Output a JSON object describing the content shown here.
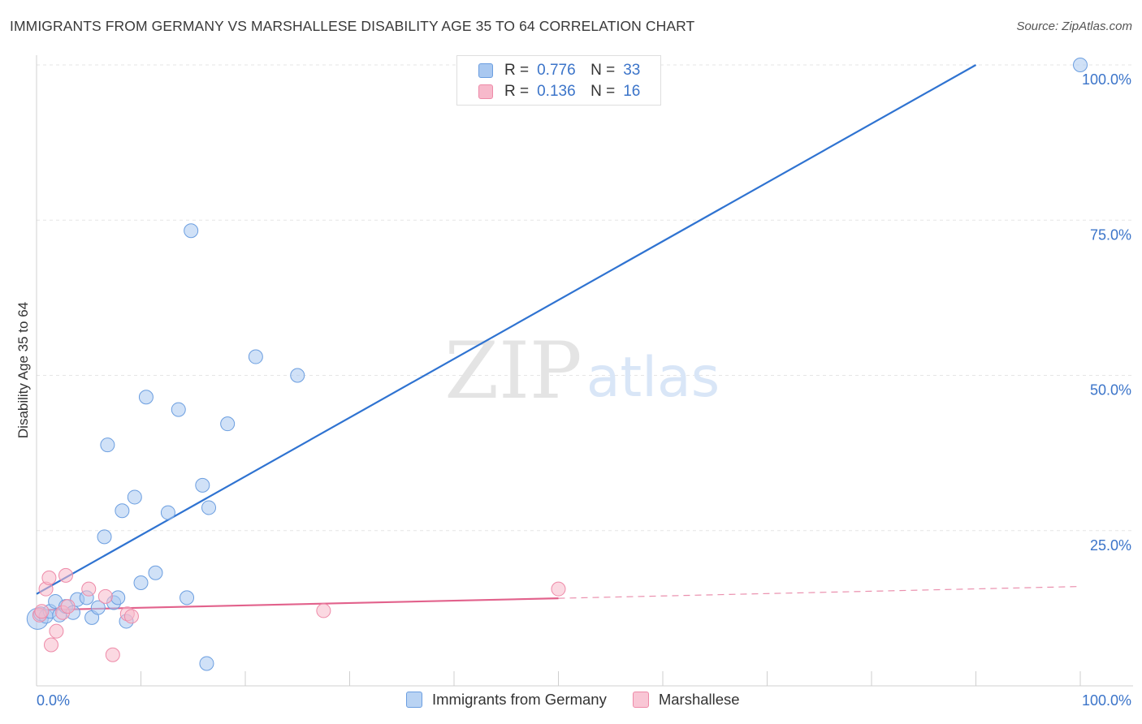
{
  "header": {
    "title": "IMMIGRANTS FROM GERMANY VS MARSHALLESE DISABILITY AGE 35 TO 64 CORRELATION CHART",
    "source": "Source: ZipAtlas.com"
  },
  "legend": {
    "r_label": "R =",
    "n_label": "N =",
    "rows": [
      {
        "r": "0.776",
        "n": "33",
        "color": "#a9c8f0",
        "border": "#6b9ee0"
      },
      {
        "r": "0.136",
        "n": "16",
        "color": "#f7b9cb",
        "border": "#ee8aa8"
      }
    ]
  },
  "bottom_legend": [
    {
      "label": "Immigrants from Germany",
      "color": "#b9d3f3",
      "border": "#6b9ee0"
    },
    {
      "label": "Marshallese",
      "color": "#f9c6d5",
      "border": "#ee8aa8"
    }
  ],
  "watermark": {
    "zip": "ZIP",
    "atlas": "atlas"
  },
  "chart_data": {
    "type": "scatter",
    "title": "IMMIGRANTS FROM GERMANY VS MARSHALLESE DISABILITY AGE 35 TO 64 CORRELATION CHART",
    "xlabel": "",
    "ylabel": "Disability Age 35 to 64",
    "xlim": [
      0,
      100
    ],
    "ylim": [
      0,
      100
    ],
    "x_tick_labels": [
      "0.0%",
      "100.0%"
    ],
    "y_ticks": [
      25,
      50,
      75,
      100
    ],
    "y_tick_labels": [
      "25.0%",
      "50.0%",
      "75.0%",
      "100.0%"
    ],
    "series": [
      {
        "name": "Immigrants from Germany",
        "color": "#a9c8f0",
        "stroke": "#6b9ee0",
        "line_color": "#2f73d1",
        "trend": {
          "x0": 0,
          "y0": 14.8,
          "x1": 90,
          "y1": 100,
          "solid_to": 90
        },
        "points": [
          [
            0.1,
            10.8
          ],
          [
            0.4,
            11.6
          ],
          [
            0.9,
            11.2
          ],
          [
            1.3,
            12.0
          ],
          [
            1.8,
            13.6
          ],
          [
            2.2,
            11.4
          ],
          [
            2.8,
            12.8
          ],
          [
            3.5,
            11.8
          ],
          [
            3.9,
            13.9
          ],
          [
            4.8,
            14.2
          ],
          [
            5.3,
            11.0
          ],
          [
            5.9,
            12.6
          ],
          [
            6.5,
            24.0
          ],
          [
            6.8,
            38.8
          ],
          [
            7.4,
            13.4
          ],
          [
            7.8,
            14.2
          ],
          [
            8.2,
            28.2
          ],
          [
            8.6,
            10.4
          ],
          [
            9.4,
            30.4
          ],
          [
            10.0,
            16.6
          ],
          [
            10.5,
            46.5
          ],
          [
            11.4,
            18.2
          ],
          [
            12.6,
            27.9
          ],
          [
            13.6,
            44.5
          ],
          [
            14.4,
            14.2
          ],
          [
            14.8,
            73.3
          ],
          [
            15.9,
            32.3
          ],
          [
            16.3,
            3.6
          ],
          [
            16.5,
            28.7
          ],
          [
            18.3,
            42.2
          ],
          [
            21.0,
            53.0
          ],
          [
            25.0,
            50.0
          ],
          [
            100.0,
            100.0
          ]
        ]
      },
      {
        "name": "Marshallese",
        "color": "#f7b9cb",
        "stroke": "#ee8aa8",
        "line_color": "#e2628c",
        "trend": {
          "x0": 0,
          "y0": 12.2,
          "x1": 100,
          "y1": 16.0,
          "solid_to": 50
        },
        "points": [
          [
            0.3,
            11.4
          ],
          [
            0.5,
            12.0
          ],
          [
            0.9,
            15.6
          ],
          [
            1.2,
            17.4
          ],
          [
            1.4,
            6.6
          ],
          [
            1.9,
            8.8
          ],
          [
            2.5,
            11.8
          ],
          [
            2.8,
            17.8
          ],
          [
            3.0,
            12.8
          ],
          [
            5.0,
            15.6
          ],
          [
            6.6,
            14.4
          ],
          [
            7.3,
            5.0
          ],
          [
            8.7,
            11.6
          ],
          [
            9.1,
            11.2
          ],
          [
            27.5,
            12.1
          ],
          [
            50.0,
            15.6
          ]
        ]
      }
    ]
  }
}
